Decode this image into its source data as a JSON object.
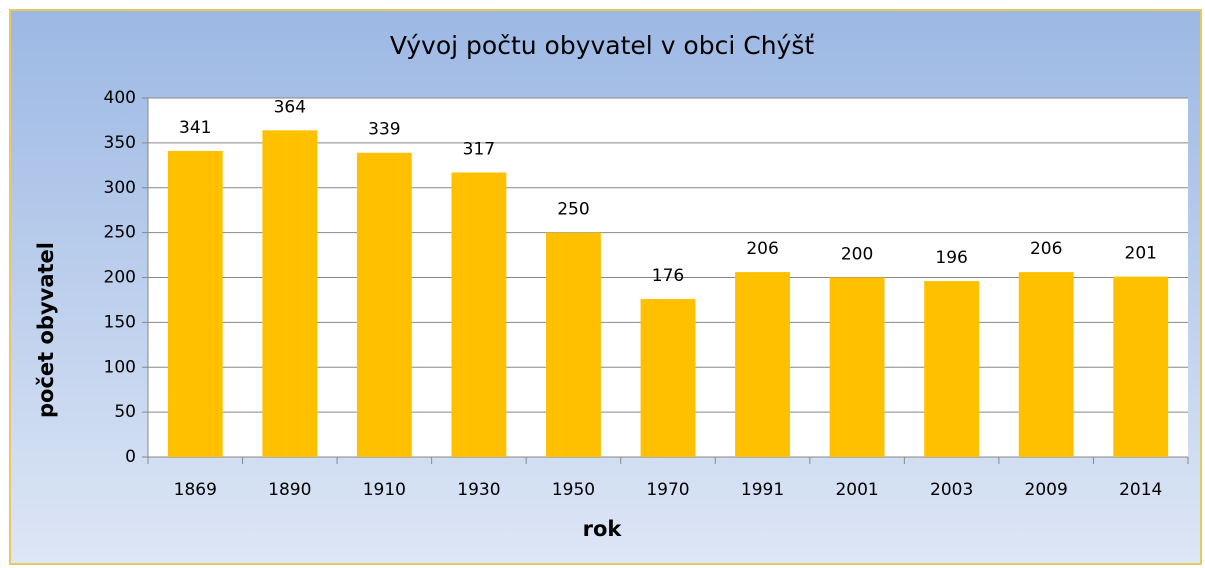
{
  "chart_data": {
    "type": "bar",
    "title": "Vývoj počtu obyvatel v obci Chýšť",
    "xlabel": "rok",
    "ylabel": "počet obyvatel",
    "categories": [
      "1869",
      "1890",
      "1910",
      "1930",
      "1950",
      "1970",
      "1991",
      "2001",
      "2003",
      "2009",
      "2014"
    ],
    "values": [
      341,
      364,
      339,
      317,
      250,
      176,
      206,
      200,
      196,
      206,
      201
    ],
    "color": "#ffc000",
    "ylim": [
      0,
      400
    ],
    "yticks": [
      0,
      50,
      100,
      150,
      200,
      250,
      300,
      350,
      400
    ],
    "grid": true
  }
}
